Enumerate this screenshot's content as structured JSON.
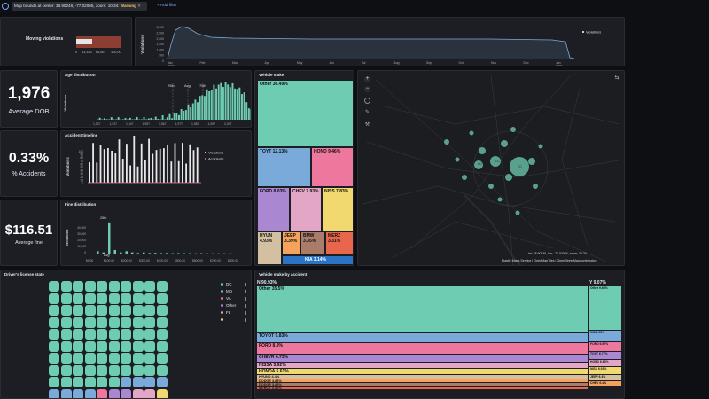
{
  "filter_bar": {
    "filter_text": "Map bounds at center: 38.90246, -77.02065, zoom: 10.34:",
    "filter_tag": "Warning",
    "add_filter_label": "+ Add filter"
  },
  "colors": {
    "teal": "#6dccb1",
    "blue": "#79aad9",
    "pink": "#ee789d",
    "purple": "#a987d1",
    "lilac": "#e4a6c7",
    "yellow": "#f1d86f",
    "tan": "#d2c0a0",
    "orange": "#f5a35c",
    "red": "#c94e4e",
    "panel": "#1d1e24",
    "bg": "#0e0f12"
  },
  "moving_violations": {
    "label": "Moving violations",
    "ticks": [
      "0",
      "33,333",
      "66,667",
      "100,00"
    ],
    "value_fraction": 0.36
  },
  "timeline_top": {
    "ylabel": "Violations",
    "yticks": [
      "3,000",
      "2,500",
      "2,000",
      "1,500",
      "1,000",
      "500",
      "0"
    ],
    "xticks": [
      "Jan 2023",
      "Feb",
      "Mar",
      "Apr",
      "May",
      "Jun",
      "Jul",
      "Aug",
      "Sep",
      "Oct",
      "Nov",
      "Dec",
      "Jan 2024"
    ],
    "legend": "Violations"
  },
  "kpis": {
    "avg_dob_value": "1,976",
    "avg_dob_label": "Average DOB",
    "accidents_value": "0.33%",
    "accidents_label": "% Accidents",
    "fine_value": "$116.51",
    "fine_label": "Average fine"
  },
  "age_distribution": {
    "title": "Age distribution",
    "ylabel": "Violations",
    "xticks": [
      "1,927",
      "1,937",
      "1,947",
      "1,957",
      "1,967",
      "1,977",
      "1,987",
      "1,997",
      "2,007"
    ],
    "annotations": [
      "25th",
      "Avg",
      "75th"
    ]
  },
  "accident_timeline": {
    "title": "Accident timeline",
    "ylabel": "Violations",
    "yticks": [
      "100",
      "90",
      "80",
      "70",
      "60",
      "50",
      "40",
      "30",
      "20",
      "10",
      "0"
    ],
    "legend": [
      "Violations",
      "Accidents"
    ]
  },
  "fine_distribution": {
    "title": "Fine distribution",
    "ylabel": "Violations",
    "yticks": [
      "40,000",
      "30,000",
      "20,000",
      "10,000",
      "0"
    ],
    "xticks": [
      "$0.00",
      "$100.00",
      "$200.00",
      "$300.00",
      "$400.00",
      "$500.00",
      "$600.00",
      "$700.00",
      "$800.00"
    ],
    "annotations": [
      "25th",
      "Avg"
    ]
  },
  "vehicle_make": {
    "title": "Vehicle make",
    "cells": [
      {
        "label": "Other 36.49%",
        "color": "#6dccb1"
      },
      {
        "label": "TOYT 12.13%",
        "color": "#79aad9"
      },
      {
        "label": "HOND 9.46%",
        "color": "#ee789d"
      },
      {
        "label": "FORD 8.03%",
        "color": "#a987d1"
      },
      {
        "label": "CHEV 7.93%",
        "color": "#e4a6c7"
      },
      {
        "label": "NISS 7.83%",
        "color": "#f1d86f"
      },
      {
        "label": "HYUN 4.93%",
        "color": "#d2c0a0"
      },
      {
        "label": "JEEP 3.39%",
        "color": "#f5a35c"
      },
      {
        "label": "BMW 3.35%",
        "color": "#aa7d6b"
      },
      {
        "label": "MERZ 3.31%",
        "color": "#e7664c"
      },
      {
        "label": "KIA 3.14%",
        "color": "#ffffff"
      }
    ]
  },
  "map": {
    "attribution": "Elastic Maps Service | OpenMapTiles | OpenStreetMap contributors",
    "coords": "lat: 38.90246, lon: -77.02065, zoom: 10.34",
    "bubble_labels": [
      "DC",
      "DC",
      "DC"
    ]
  },
  "drivers_license": {
    "title": "Driver's license state",
    "legend": [
      {
        "label": "DC",
        "color": "#6dccb1"
      },
      {
        "label": "MD",
        "color": "#79aad9"
      },
      {
        "label": "VA",
        "color": "#ee789d"
      },
      {
        "label": "Other",
        "color": "#a987d1"
      },
      {
        "label": "FL",
        "color": "#e4a6c7"
      },
      {
        "label": "",
        "color": "#f1d86f"
      }
    ]
  },
  "make_by_accident": {
    "title": "Vehicle make by accident",
    "col_n_label": "N 90.93%",
    "col_y_label": "Y 9.07%",
    "n_rows": [
      {
        "label": "Other 35.5%",
        "color": "#6dccb1"
      },
      {
        "label": "TOYOT 9.83%",
        "color": "#79aad9"
      },
      {
        "label": "FORD 8.9%",
        "color": "#ee789d"
      },
      {
        "label": "CHEVR 6.73%",
        "color": "#a987d1"
      },
      {
        "label": "NISSA 5.92%",
        "color": "#e4a6c7"
      },
      {
        "label": "HONDA 5.61%",
        "color": "#f1d86f"
      },
      {
        "label": "HYUND 4.4%",
        "color": "#d2c0a0"
      },
      {
        "label": "DODGE 3.88%",
        "color": "#f5a35c"
      },
      {
        "label": "DODGE 3.68%",
        "color": "#aa7d6b"
      },
      {
        "label": "MERCE 3.46%",
        "color": "#e7664c"
      }
    ],
    "y_rows": [
      {
        "label": "Other 9.63%",
        "color": "#6dccb1"
      },
      {
        "label": "KIA 1.93%",
        "color": "#79aad9"
      },
      {
        "label": "FORD 6.67%",
        "color": "#ee789d"
      },
      {
        "label": "TOYT 6.77%",
        "color": "#a987d1"
      },
      {
        "label": "HOND 6.63%",
        "color": "#e4a6c7"
      },
      {
        "label": "NISS 6.93%",
        "color": "#f1d86f"
      },
      {
        "label": "JEEP 6.4%",
        "color": "#d2c0a0"
      },
      {
        "label": "CHEV 6.4%",
        "color": "#f5a35c"
      }
    ]
  }
}
